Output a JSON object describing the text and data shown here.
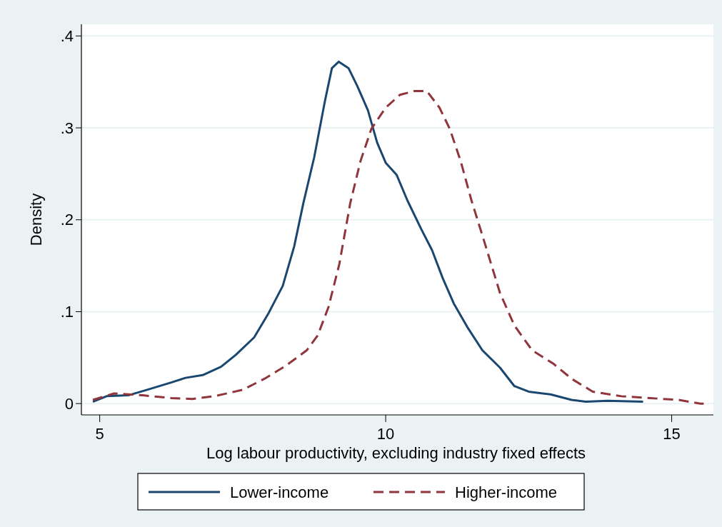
{
  "chart_data": {
    "type": "line",
    "xlabel": "Log labour productivity, excluding industry fixed effects",
    "ylabel": "Density",
    "xlim": [
      4.68,
      15.73
    ],
    "xticks": [
      5,
      10,
      15
    ],
    "ylim": [
      -0.0123,
      0.4127
    ],
    "yticks": [
      0,
      {
        "value": 0.1,
        "label": ".1"
      },
      {
        "value": 0.2,
        "label": ".2"
      },
      {
        "value": 0.3,
        "label": ".3"
      },
      {
        "value": 0.4,
        "label": ".4"
      }
    ],
    "grid": "y",
    "legend": "bottom",
    "series": [
      {
        "name": "Lower-income",
        "color": "#1a476f",
        "line_style": "solid",
        "x": [
          4.88,
          5.12,
          5.5,
          5.88,
          6.25,
          6.5,
          6.8,
          7.12,
          7.38,
          7.7,
          7.94,
          8.2,
          8.4,
          8.56,
          8.75,
          8.94,
          9.06,
          9.18,
          9.35,
          9.5,
          9.69,
          9.85,
          10.0,
          10.19,
          10.38,
          10.62,
          10.81,
          11.0,
          11.19,
          11.44,
          11.69,
          12.0,
          12.25,
          12.5,
          12.88,
          13.25,
          13.5,
          13.88,
          14.5
        ],
        "values": [
          0.002,
          0.008,
          0.009,
          0.016,
          0.023,
          0.028,
          0.031,
          0.04,
          0.053,
          0.072,
          0.097,
          0.128,
          0.171,
          0.218,
          0.268,
          0.33,
          0.365,
          0.372,
          0.365,
          0.346,
          0.319,
          0.284,
          0.262,
          0.249,
          0.221,
          0.19,
          0.167,
          0.136,
          0.109,
          0.082,
          0.058,
          0.039,
          0.019,
          0.013,
          0.01,
          0.004,
          0.002,
          0.003,
          0.002
        ]
      },
      {
        "name": "Higher-income",
        "color": "#90353b",
        "line_style": "dashed",
        "x": [
          4.88,
          5.25,
          5.75,
          6.25,
          6.62,
          7.0,
          7.5,
          7.88,
          8.25,
          8.62,
          8.81,
          9.0,
          9.19,
          9.38,
          9.56,
          9.75,
          10.0,
          10.25,
          10.5,
          10.72,
          10.94,
          11.12,
          11.31,
          11.5,
          11.75,
          12.0,
          12.25,
          12.56,
          12.94,
          13.25,
          13.62,
          14.12,
          14.62,
          15.12,
          15.5,
          15.56
        ],
        "values": [
          0.004,
          0.011,
          0.009,
          0.006,
          0.005,
          0.008,
          0.015,
          0.027,
          0.041,
          0.058,
          0.074,
          0.105,
          0.152,
          0.218,
          0.264,
          0.299,
          0.322,
          0.336,
          0.34,
          0.34,
          0.322,
          0.299,
          0.264,
          0.221,
          0.171,
          0.12,
          0.085,
          0.058,
          0.043,
          0.027,
          0.013,
          0.008,
          0.006,
          0.004,
          0,
          0
        ]
      }
    ]
  }
}
